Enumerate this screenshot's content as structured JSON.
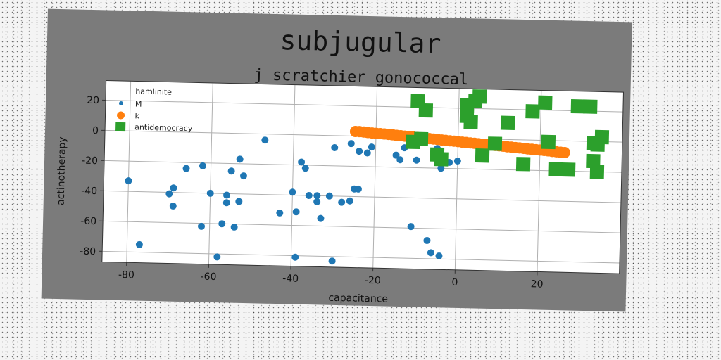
{
  "chart_data": {
    "type": "scatter",
    "title": "subjugular",
    "subtitle": "j scratchier gonococcal",
    "xlabel": "capacitance",
    "ylabel": "actinotherapy",
    "xlim": [
      -86,
      40
    ],
    "ylim": [
      -87,
      33
    ],
    "xticks": [
      -80,
      -60,
      -40,
      -20,
      0,
      20
    ],
    "yticks": [
      20,
      0,
      -20,
      -40,
      -60,
      -80
    ],
    "grid": true,
    "legend": {
      "placement": "top-left",
      "title": "hamlinite"
    },
    "series": [
      {
        "name": "M",
        "marker": "circle",
        "color": "#1f77b4",
        "points": [
          [
            -80,
            -33
          ],
          [
            -77,
            -75
          ],
          [
            -70,
            -41
          ],
          [
            -69,
            -37
          ],
          [
            -69,
            -49
          ],
          [
            -66,
            -24
          ],
          [
            -62,
            -22
          ],
          [
            -62,
            -62
          ],
          [
            -60,
            -40
          ],
          [
            -58,
            -82
          ],
          [
            -57,
            -60
          ],
          [
            -56,
            -41
          ],
          [
            -56,
            -46
          ],
          [
            -55,
            -25
          ],
          [
            -54,
            -62
          ],
          [
            -53,
            -17
          ],
          [
            -53,
            -45
          ],
          [
            -52,
            -28
          ],
          [
            -47,
            -4
          ],
          [
            -43,
            -52
          ],
          [
            -40,
            -38
          ],
          [
            -39,
            -51
          ],
          [
            -39,
            -81
          ],
          [
            -38,
            -18
          ],
          [
            -37,
            -22
          ],
          [
            -36,
            -40
          ],
          [
            -34,
            -40
          ],
          [
            -34,
            -44
          ],
          [
            -33,
            -55
          ],
          [
            -31,
            -40
          ],
          [
            -30,
            -83
          ],
          [
            -30,
            -8
          ],
          [
            -28,
            -44
          ],
          [
            -26,
            -43
          ],
          [
            -26,
            -5
          ],
          [
            -25,
            -35
          ],
          [
            -24,
            -10
          ],
          [
            -24,
            -35
          ],
          [
            -22,
            -11
          ],
          [
            -21,
            -7
          ],
          [
            -15,
            -12
          ],
          [
            -14,
            -15
          ],
          [
            -13,
            -7
          ],
          [
            -11,
            -59
          ],
          [
            -10,
            -15
          ],
          [
            -7,
            -68
          ],
          [
            -6,
            -76
          ],
          [
            -6,
            -10
          ],
          [
            -5,
            -7
          ],
          [
            -4,
            -78
          ],
          [
            -4,
            -20
          ],
          [
            -2,
            -16
          ],
          [
            0,
            -15
          ]
        ]
      },
      {
        "name": "k",
        "marker": "circle",
        "color": "#ff7f0e",
        "points": [
          [
            -25,
            3
          ],
          [
            -24,
            3
          ],
          [
            -23,
            2.8
          ],
          [
            -22,
            2.5
          ],
          [
            -21,
            2.3
          ],
          [
            -20,
            2.1
          ],
          [
            -19,
            2
          ],
          [
            -18,
            1.8
          ],
          [
            -17,
            1.6
          ],
          [
            -16,
            1.4
          ],
          [
            -15,
            1.1
          ],
          [
            -14,
            0.9
          ],
          [
            -13,
            0.7
          ],
          [
            -12,
            0.5
          ],
          [
            -11,
            0.3
          ],
          [
            -10,
            0
          ],
          [
            -9,
            -0.2
          ],
          [
            -8,
            -0.4
          ],
          [
            -7,
            -0.6
          ],
          [
            -6,
            -0.8
          ],
          [
            -5,
            -1
          ],
          [
            -4,
            -1.3
          ],
          [
            -3,
            -1.5
          ],
          [
            -2,
            -1.7
          ],
          [
            -1,
            -1.9
          ],
          [
            0,
            -2.1
          ],
          [
            1,
            -2.4
          ],
          [
            2,
            -2.6
          ],
          [
            3,
            -2.8
          ],
          [
            4,
            -3
          ],
          [
            5,
            -3.2
          ],
          [
            6,
            -3.5
          ],
          [
            7,
            -3.7
          ],
          [
            8,
            -3.9
          ],
          [
            9,
            -4.1
          ],
          [
            10,
            -4.3
          ],
          [
            11,
            -4.5
          ],
          [
            12,
            -4.8
          ],
          [
            13,
            -5
          ],
          [
            14,
            -5.2
          ],
          [
            15,
            -5.4
          ],
          [
            16,
            -5.6
          ],
          [
            17,
            -5.9
          ],
          [
            18,
            -6.1
          ],
          [
            19,
            -6.3
          ],
          [
            20,
            -6.5
          ],
          [
            21,
            -6.7
          ],
          [
            22,
            -6.9
          ],
          [
            23,
            -7.2
          ],
          [
            24,
            -7.4
          ],
          [
            25,
            -7.6
          ],
          [
            26,
            -7.8
          ]
        ]
      },
      {
        "name": "antidemocracy",
        "marker": "square",
        "color": "#2ca02c",
        "points": [
          [
            -10,
            24
          ],
          [
            -8,
            18
          ],
          [
            -11,
            -3
          ],
          [
            -9,
            -1
          ],
          [
            -5,
            -11
          ],
          [
            -4,
            -14
          ],
          [
            2,
            22
          ],
          [
            2,
            15
          ],
          [
            3,
            11
          ],
          [
            4,
            25
          ],
          [
            5,
            28
          ],
          [
            6,
            -11
          ],
          [
            9,
            -3
          ],
          [
            12,
            11
          ],
          [
            16,
            -16
          ],
          [
            18,
            19
          ],
          [
            21,
            25
          ],
          [
            22,
            -1
          ],
          [
            24,
            -19
          ],
          [
            27,
            -19
          ],
          [
            29,
            23
          ],
          [
            32,
            23
          ],
          [
            33,
            -1
          ],
          [
            33,
            -13
          ],
          [
            34,
            -2
          ],
          [
            34,
            -20
          ],
          [
            35,
            3
          ]
        ]
      }
    ]
  }
}
